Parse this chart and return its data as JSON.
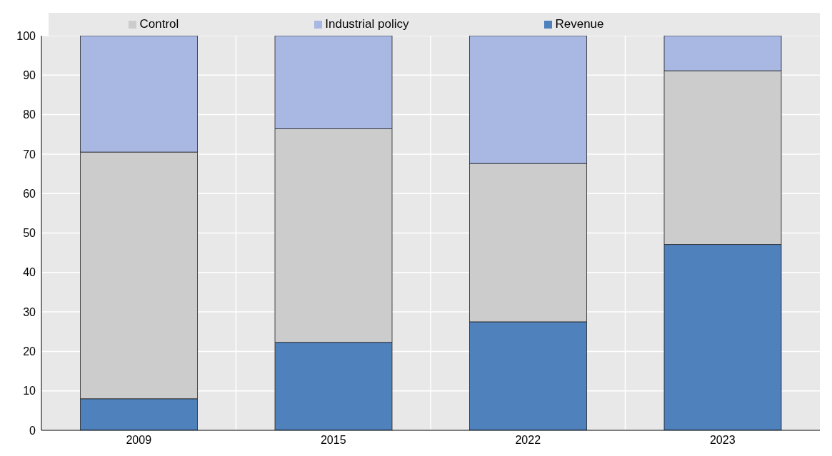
{
  "chart_data": {
    "type": "bar",
    "stacked": true,
    "categories": [
      "2009",
      "2015",
      "2022",
      "2023"
    ],
    "series": [
      {
        "name": "Revenue",
        "color": "#4f81bd",
        "values": [
          8,
          22.3,
          27.5,
          47.1
        ]
      },
      {
        "name": "Control",
        "color": "#cccccc",
        "values": [
          62.5,
          54.1,
          40.1,
          44
        ]
      },
      {
        "name": "Industrial policy",
        "color": "#a9b8e3",
        "values": [
          29.5,
          23.6,
          32.4,
          8.9
        ]
      }
    ],
    "ylim": [
      0,
      100
    ],
    "yticks": [
      0,
      10,
      20,
      30,
      40,
      50,
      60,
      70,
      80,
      90,
      100
    ],
    "grid": true,
    "legend": "top"
  }
}
